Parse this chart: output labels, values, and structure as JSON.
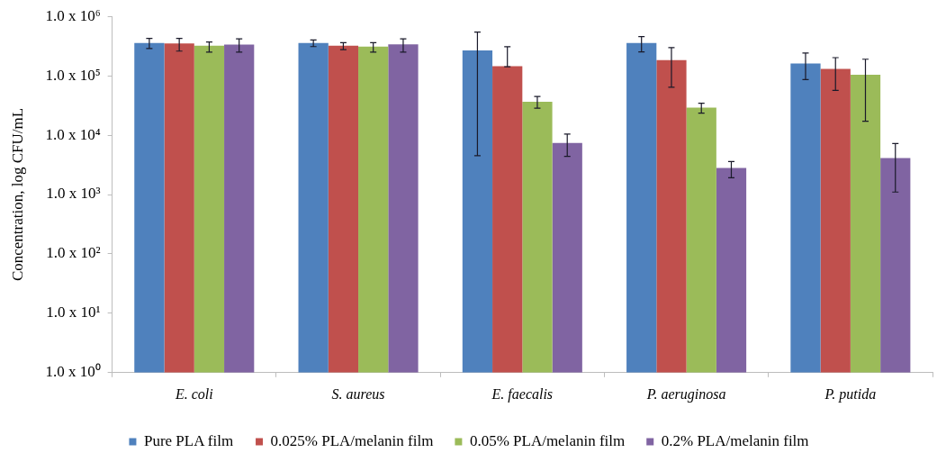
{
  "chart_data": {
    "type": "bar",
    "ylabel": "Concentration, log CFU/mL",
    "categories": [
      "E. coli",
      "S. aureus",
      "E. faecalis",
      "P. aeruginosa",
      "P. putida"
    ],
    "log": "y",
    "ylim": [
      1,
      1000000
    ],
    "yticks": [
      {
        "value": 1,
        "label": "1.0 x 10⁰"
      },
      {
        "value": 10,
        "label": "1.0 x 10¹"
      },
      {
        "value": 100,
        "label": "1.0 x 10²"
      },
      {
        "value": 1000,
        "label": "1.0 x 10³"
      },
      {
        "value": 10000,
        "label": "1.0 x 10⁴"
      },
      {
        "value": 100000,
        "label": "1.0 x 10⁵"
      },
      {
        "value": 1000000,
        "label": "1.0 x 10⁶"
      }
    ],
    "grid": false,
    "legend": "bottom",
    "series": [
      {
        "name": "Pure PLA film",
        "color": "#4f81bd",
        "values": [
          356000,
          356000,
          268000,
          356000,
          161000
        ],
        "errors": [
          [
            288000,
            425000
          ],
          [
            310000,
            400000
          ],
          [
            4500,
            544000
          ],
          [
            252000,
            456000
          ],
          [
            86500,
            241000
          ]
        ]
      },
      {
        "name": "0.025% PLA/melanin film",
        "color": "#c0504d",
        "values": [
          350000,
          320000,
          145000,
          184000,
          130000
        ],
        "errors": [
          [
            260000,
            425000
          ],
          [
            275000,
            360000
          ],
          [
            142000,
            309000
          ],
          [
            64000,
            298000
          ],
          [
            56600,
            202000
          ]
        ]
      },
      {
        "name": "0.05% PLA/melanin film",
        "color": "#9bbb59",
        "values": [
          320000,
          310000,
          36500,
          29200,
          104000
        ],
        "errors": [
          [
            250000,
            370000
          ],
          [
            250000,
            360000
          ],
          [
            28500,
            44700
          ],
          [
            23400,
            34500
          ],
          [
            17200,
            190000
          ]
        ]
      },
      {
        "name": "0.2% PLA/melanin film",
        "color": "#8064a2",
        "values": [
          335000,
          337000,
          7400,
          2800,
          4130
        ],
        "errors": [
          [
            250000,
            420000
          ],
          [
            250000,
            420000
          ],
          [
            4400,
            10400
          ],
          [
            1920,
            3590
          ],
          [
            1100,
            7200
          ]
        ]
      }
    ]
  }
}
